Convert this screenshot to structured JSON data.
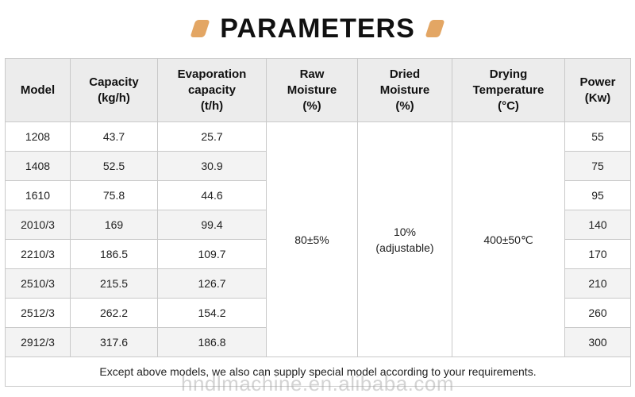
{
  "title": "PARAMETERS",
  "colors": {
    "accent": "#e3a664",
    "header_bg": "#ececec",
    "row_alt_bg": "#f3f3f3",
    "border": "#c9c9c9"
  },
  "table": {
    "headers": [
      "Model",
      "Capacity\n(kg/h)",
      "Evaporation\ncapacity\n(t/h)",
      "Raw\nMoisture\n(%)",
      "Dried\nMoisture\n(%)",
      "Drying\nTemperature\n(°C)",
      "Power\n(Kw)"
    ],
    "rows": [
      {
        "model": "1208",
        "capacity": "43.7",
        "evaporation": "25.7",
        "power": "55"
      },
      {
        "model": "1408",
        "capacity": "52.5",
        "evaporation": "30.9",
        "power": "75"
      },
      {
        "model": "1610",
        "capacity": "75.8",
        "evaporation": "44.6",
        "power": "95"
      },
      {
        "model": "2010/3",
        "capacity": "169",
        "evaporation": "99.4",
        "power": "140"
      },
      {
        "model": "2210/3",
        "capacity": "186.5",
        "evaporation": "109.7",
        "power": "170"
      },
      {
        "model": "2510/3",
        "capacity": "215.5",
        "evaporation": "126.7",
        "power": "210"
      },
      {
        "model": "2512/3",
        "capacity": "262.2",
        "evaporation": "154.2",
        "power": "260"
      },
      {
        "model": "2912/3",
        "capacity": "317.6",
        "evaporation": "186.8",
        "power": "300"
      }
    ],
    "raw_moisture": "80±5%",
    "dried_moisture": "10%\n(adjustable)",
    "drying_temperature": "400±50℃",
    "note": "Except above models, we also can supply special model according to your requirements."
  },
  "watermark": "hndlmachine.en.alibaba.com"
}
